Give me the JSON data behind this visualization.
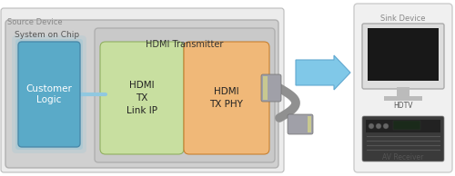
{
  "source_device_label": "Source Device",
  "soc_label": "System on Chip",
  "customer_logic_label": "Customer\nLogic",
  "hdmi_tx_label": "HDMI Transmitter",
  "tx_link_label": "HDMI\nTX\nLink IP",
  "tx_phy_label": "HDMI\nTX PHY",
  "sink_device_label": "Sink Device",
  "hdtv_label": "HDTV",
  "av_receiver_label": "AV Receiver",
  "bg_color": "#ffffff",
  "soc_bg": "#d0d0d0",
  "soc_edge": "#b0b0b0",
  "cl_color": "#5aaac8",
  "cl_edge": "#4a8aaa",
  "tx_bg": "#c8c8c8",
  "tx_edge": "#aaaaaa",
  "lk_color": "#c8dfa0",
  "lk_edge": "#90b060",
  "ph_color": "#f0b878",
  "ph_edge": "#c88030",
  "arrow_fill": "#80c8e8",
  "arrow_edge": "#60a8d0",
  "connector_color": "#909090",
  "connector_tip": "#c0c4a0",
  "cable_color": "#909090",
  "sink_bg": "#f0f0f0",
  "sink_edge": "#cccccc",
  "tv_outer": "#cccccc",
  "tv_screen": "#181818",
  "tv_stand": "#aaaaaa",
  "av_outer": "#555555",
  "av_inner": "#222222",
  "line_color": "#90c8e0"
}
